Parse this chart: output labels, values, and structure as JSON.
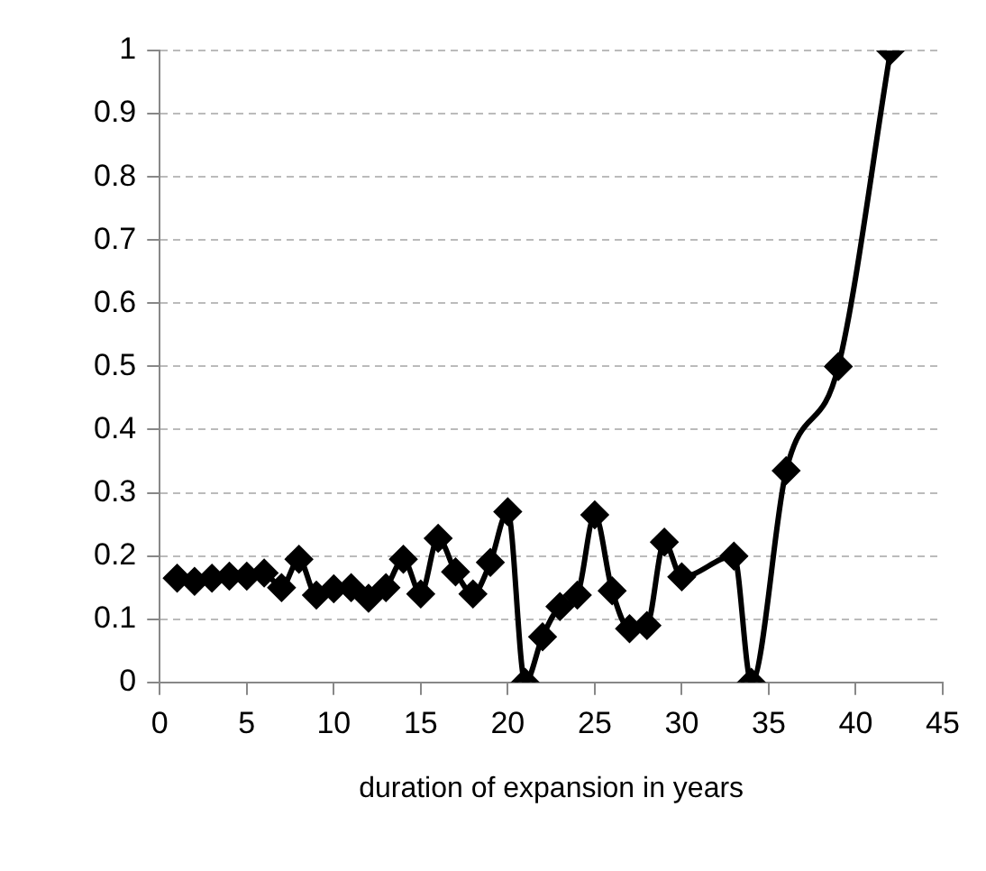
{
  "chart_data": {
    "type": "line",
    "xlabel": "duration of expansion in years",
    "x": [
      1,
      2,
      3,
      4,
      5,
      6,
      7,
      8,
      9,
      10,
      11,
      12,
      13,
      14,
      15,
      16,
      17,
      18,
      19,
      20,
      21,
      22,
      23,
      24,
      25,
      26,
      27,
      28,
      29,
      30,
      33,
      34,
      36,
      39,
      42
    ],
    "series": [
      {
        "color": "#000000",
        "values": [
          0.165,
          0.16,
          0.165,
          0.168,
          0.168,
          0.173,
          0.15,
          0.195,
          0.138,
          0.148,
          0.15,
          0.133,
          0.15,
          0.195,
          0.14,
          0.228,
          0.175,
          0.14,
          0.19,
          0.27,
          0,
          0.072,
          0.12,
          0.138,
          0.265,
          0.145,
          0.085,
          0.09,
          0.222,
          0.167,
          0.2,
          0,
          0.335,
          0.5,
          1
        ]
      }
    ],
    "xlim": [
      0,
      45
    ],
    "xticks": [
      0,
      5,
      10,
      15,
      20,
      25,
      30,
      35,
      40,
      45
    ],
    "ylim": [
      0,
      1
    ],
    "yticks": [
      0,
      0.1,
      0.2,
      0.3,
      0.4,
      0.5,
      0.6,
      0.7,
      0.8,
      0.9,
      1
    ],
    "grid": "y",
    "legend": false,
    "marker": "diamond",
    "line_style": "solid"
  }
}
